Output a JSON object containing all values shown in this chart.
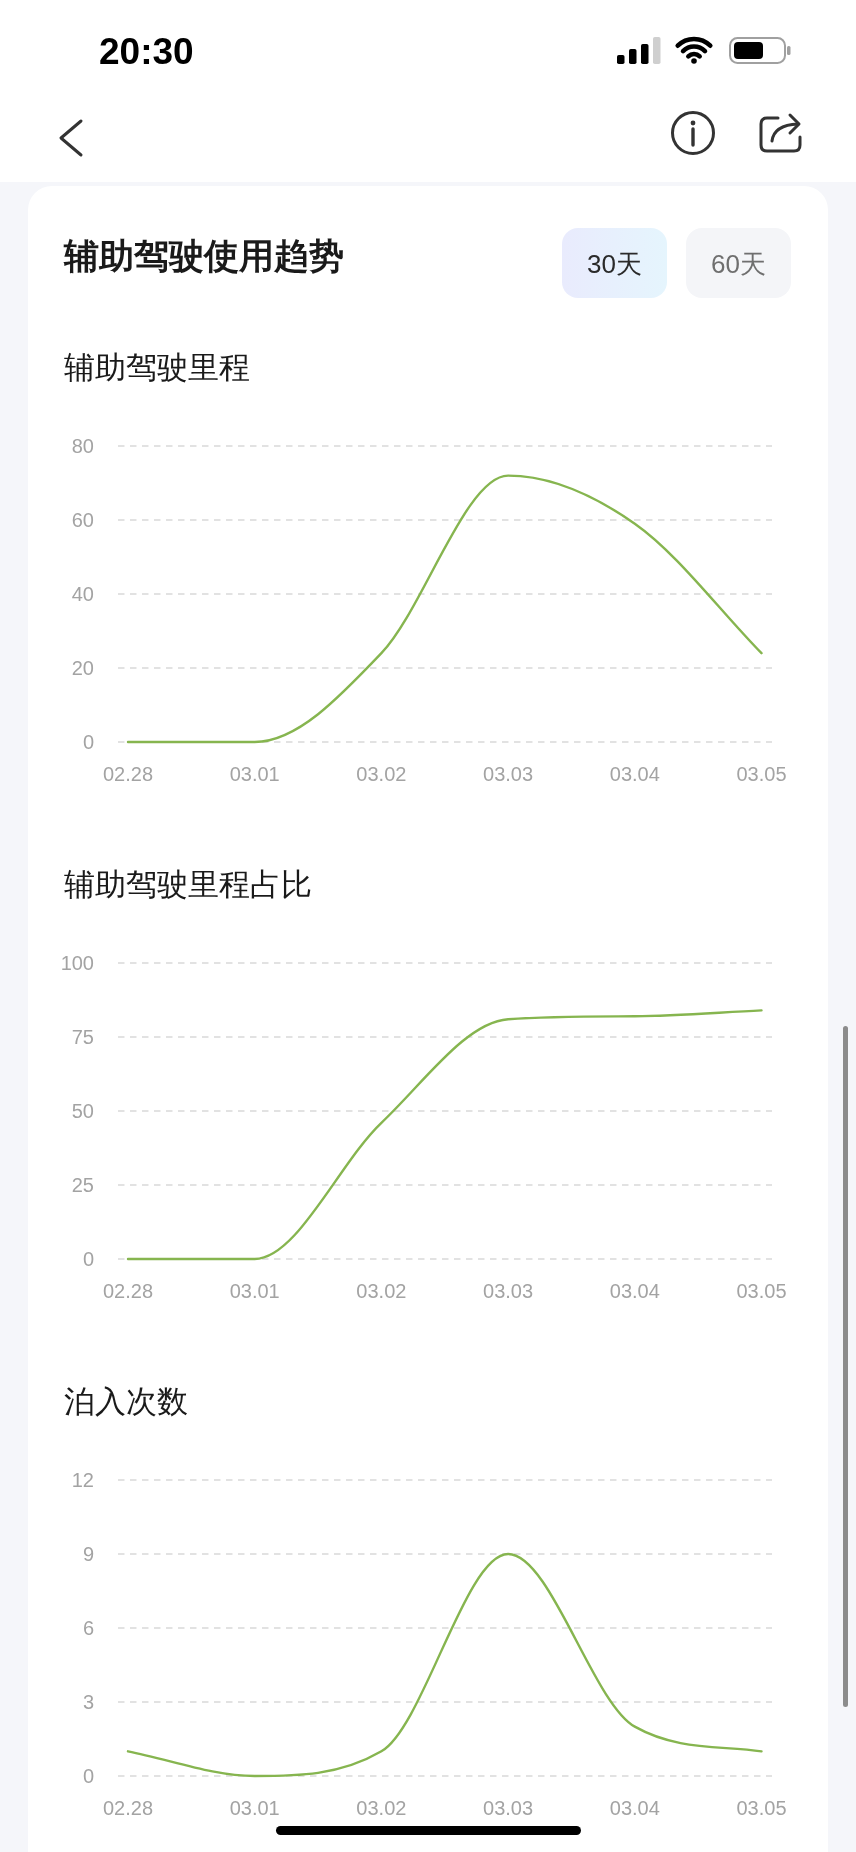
{
  "chart_data": [
    {
      "type": "other",
      "title": "辅助驾驶使用趋势",
      "annotations": [
        "20:30",
        "30天",
        "60天"
      ]
    },
    {
      "type": "line",
      "title": "辅助驾驶里程",
      "categories": [
        "02.28",
        "03.01",
        "03.02",
        "03.03",
        "03.04",
        "03.05"
      ],
      "values": [
        0,
        0,
        24,
        72,
        59,
        24
      ],
      "color": "#86b54f",
      "ylim": [
        0,
        80
      ],
      "yticks": [
        0,
        20,
        40,
        60,
        80
      ],
      "grid": "y"
    },
    {
      "type": "line",
      "title": "辅助驾驶里程占比",
      "categories": [
        "02.28",
        "03.01",
        "03.02",
        "03.03",
        "03.04",
        "03.05"
      ],
      "values": [
        0,
        0,
        46,
        81,
        82,
        84
      ],
      "color": "#86b54f",
      "ylim": [
        0,
        100
      ],
      "yticks": [
        0,
        25,
        50,
        75,
        100
      ],
      "grid": "y"
    },
    {
      "type": "line",
      "title": "泊入次数",
      "categories": [
        "02.28",
        "03.01",
        "03.02",
        "03.03",
        "03.04",
        "03.05"
      ],
      "values": [
        1,
        0,
        1,
        9,
        2,
        1
      ],
      "color": "#86b54f",
      "ylim": [
        0,
        12
      ],
      "yticks": [
        0,
        3,
        6,
        9,
        12
      ],
      "grid": "y"
    }
  ]
}
